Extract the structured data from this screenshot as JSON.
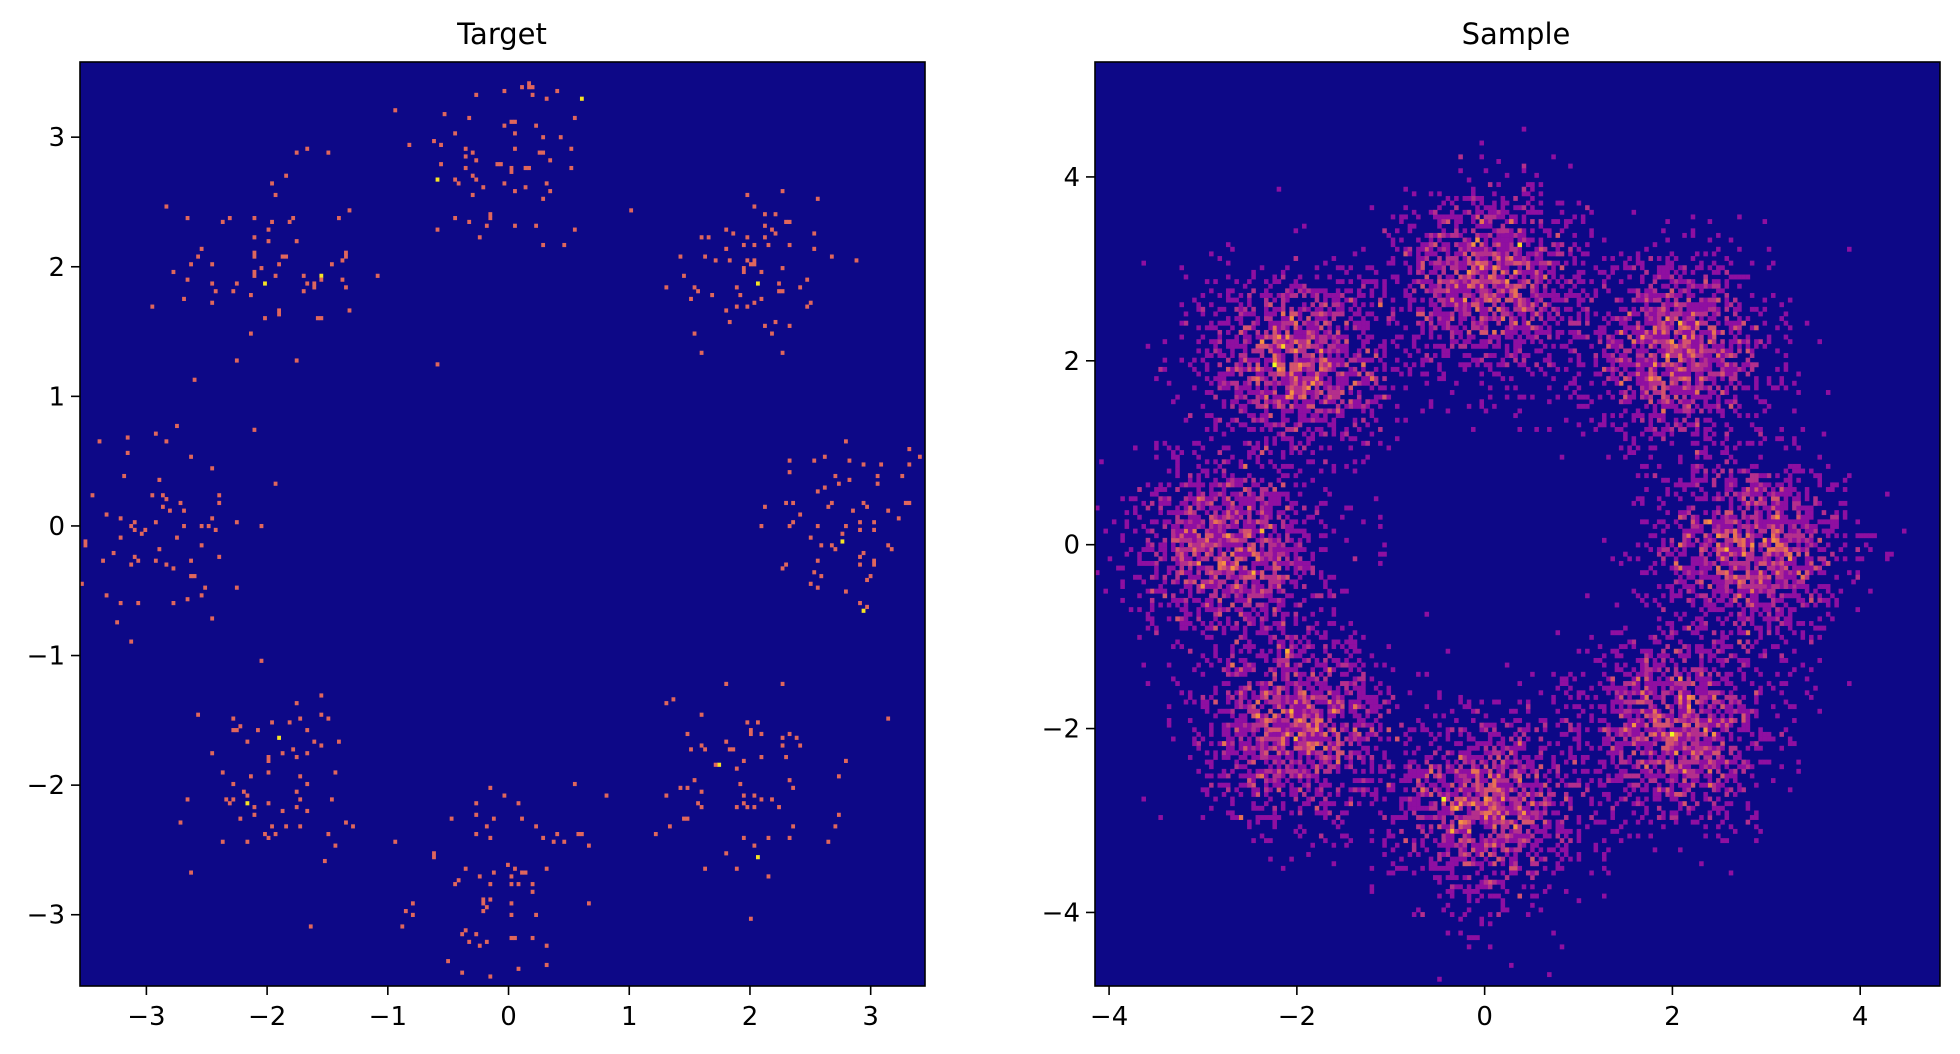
{
  "chart_data": [
    {
      "type": "heatmap",
      "title": "Target",
      "xlim": [
        -3.55,
        3.45
      ],
      "ylim": [
        -3.55,
        3.58
      ],
      "x_ticks": [
        -3,
        -2,
        -1,
        0,
        1,
        2,
        3
      ],
      "y_ticks": [
        -3,
        -2,
        -1,
        0,
        1,
        2,
        3
      ],
      "x_tick_labels": [
        "−3",
        "−2",
        "−1",
        "0",
        "1",
        "2",
        "3"
      ],
      "y_tick_labels": [
        "−3",
        "−2",
        "−1",
        "0",
        "1",
        "2",
        "3"
      ],
      "colormap": "plasma",
      "background_color": "#0d0887",
      "mixture": {
        "components": 8,
        "radius": 2.83,
        "centers": [
          [
            2.83,
            0
          ],
          [
            2.0,
            2.0
          ],
          [
            0,
            2.83
          ],
          [
            -2.0,
            2.0
          ],
          [
            -2.83,
            0
          ],
          [
            -2.0,
            -2.0
          ],
          [
            0,
            -2.83
          ],
          [
            2.0,
            -2.0
          ]
        ],
        "spread": 0.38,
        "samples_per_component": 70
      }
    },
    {
      "type": "heatmap",
      "title": "Sample",
      "xlim": [
        -4.15,
        4.85
      ],
      "ylim": [
        -4.8,
        5.25
      ],
      "x_ticks": [
        -4,
        -2,
        0,
        2,
        4
      ],
      "y_ticks": [
        -4,
        -2,
        0,
        2,
        4
      ],
      "x_tick_labels": [
        "−4",
        "−2",
        "0",
        "2",
        "4"
      ],
      "y_tick_labels": [
        "−4",
        "−2",
        "0",
        "2",
        "4"
      ],
      "colormap": "plasma",
      "background_color": "#0d0887",
      "mixture": {
        "components": 8,
        "centers": [
          [
            2.85,
            -0.05
          ],
          [
            2.05,
            2.1
          ],
          [
            0.05,
            2.85
          ],
          [
            -2.0,
            2.0
          ],
          [
            -2.7,
            -0.05
          ],
          [
            -2.0,
            -2.0
          ],
          [
            0.05,
            -2.85
          ],
          [
            2.05,
            -2.0
          ]
        ],
        "spread": 0.5,
        "samples_per_component": 1400
      }
    }
  ]
}
